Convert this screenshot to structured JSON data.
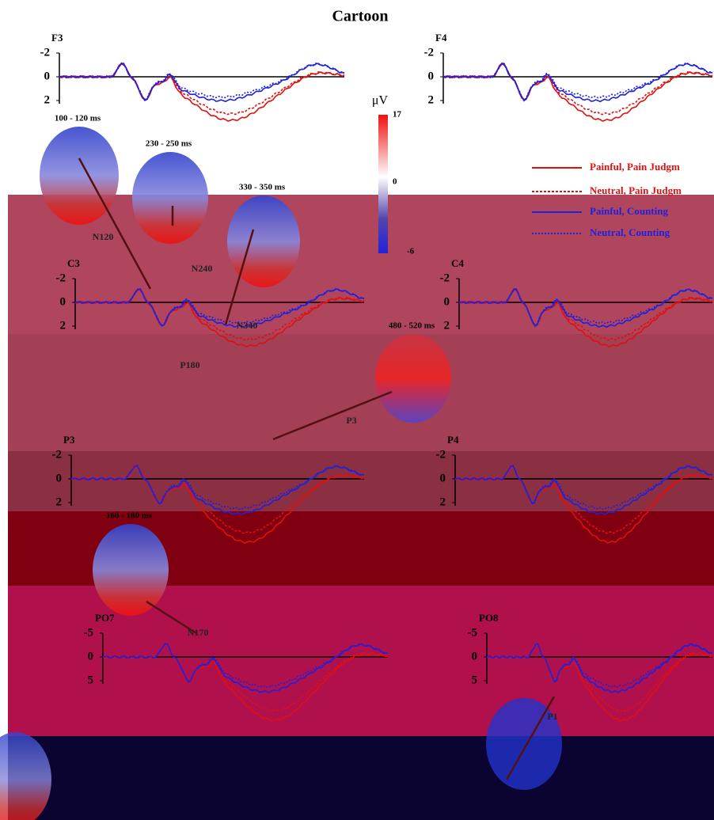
{
  "figure": {
    "title": "Cartoon",
    "panels": [
      {
        "label": "F3",
        "yticks": [
          "-2",
          "0",
          "2"
        ]
      },
      {
        "label": "F4",
        "yticks": [
          "-2",
          "0",
          "2"
        ]
      },
      {
        "label": "C3",
        "yticks": [
          "-2",
          "0",
          "2"
        ]
      },
      {
        "label": "C4",
        "yticks": [
          "-2",
          "0",
          "2"
        ]
      },
      {
        "label": "P3",
        "yticks": [
          "-2",
          "0",
          "2"
        ]
      },
      {
        "label": "P4",
        "yticks": [
          "-2",
          "0",
          "2"
        ]
      },
      {
        "label": "PO7",
        "yticks": [
          "-5",
          "0",
          "5"
        ]
      },
      {
        "label": "PO8",
        "yticks": [
          "-5",
          "0",
          "5"
        ]
      }
    ],
    "legend": [
      "Painful, Pain Judgm",
      "Neutral, Pain Judgm",
      "Painful, Counting",
      "Neutral, Counting"
    ],
    "colorbar": {
      "unit": "μV",
      "max": "17",
      "mid": "0",
      "min": "-6"
    },
    "topomaps": [
      "100 - 120 ms",
      "230 - 250 ms",
      "330 - 350 ms",
      "480 - 520 ms",
      "160 - 180 ms"
    ],
    "components": [
      "N120",
      "N240",
      "N340",
      "P180",
      "P3",
      "N170",
      "P1"
    ]
  }
}
